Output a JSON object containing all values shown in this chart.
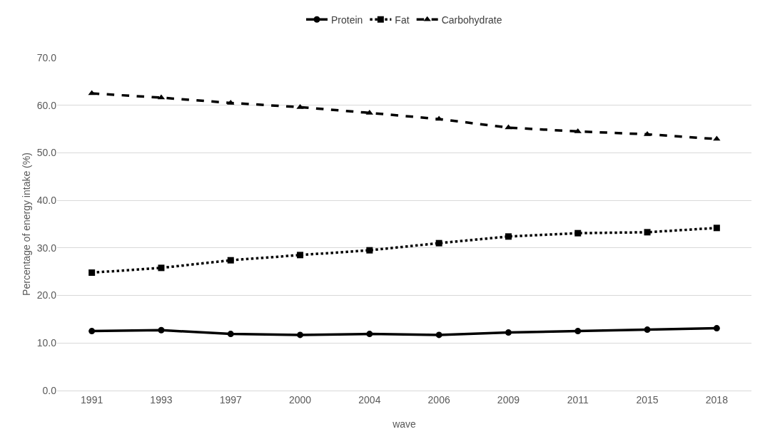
{
  "chart_data": {
    "type": "line",
    "xlabel": "wave",
    "ylabel": "Percentage of energy intake (%)",
    "categories": [
      "1991",
      "1993",
      "1997",
      "2000",
      "2004",
      "2006",
      "2009",
      "2011",
      "2015",
      "2018"
    ],
    "series": [
      {
        "name": "Protein",
        "color": "#000000",
        "marker": "circle",
        "line_style": "solid",
        "values": [
          12.5,
          12.7,
          11.9,
          11.7,
          11.9,
          11.7,
          12.2,
          12.5,
          12.8,
          13.1
        ]
      },
      {
        "name": "Fat",
        "color": "#000000",
        "marker": "square",
        "line_style": "dotted",
        "values": [
          24.8,
          25.8,
          27.4,
          28.5,
          29.5,
          31.0,
          32.4,
          33.1,
          33.3,
          34.2
        ]
      },
      {
        "name": "Carbohydrate",
        "color": "#000000",
        "marker": "triangle",
        "line_style": "dashed",
        "values": [
          62.5,
          61.6,
          60.5,
          59.6,
          58.4,
          57.1,
          55.3,
          54.5,
          53.9,
          52.9
        ]
      }
    ],
    "ylim": [
      0,
      70
    ],
    "yticks": [
      {
        "value": 0,
        "label": "0.0"
      },
      {
        "value": 10,
        "label": "10.0"
      },
      {
        "value": 20,
        "label": "20.0"
      },
      {
        "value": 30,
        "label": "30.0"
      },
      {
        "value": 40,
        "label": "40.0"
      },
      {
        "value": 50,
        "label": "50.0"
      },
      {
        "value": 60,
        "label": "60.0"
      },
      {
        "value": 70,
        "label": "70.0"
      }
    ],
    "grid": "y",
    "legend": "top"
  }
}
